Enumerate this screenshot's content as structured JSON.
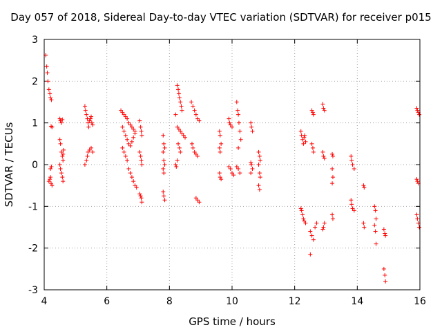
{
  "chart_data": {
    "type": "scatter",
    "title": "Day 057 of 2018, Sidereal Day-to-day VTEC variation (SDTVAR) for receiver p015",
    "xlabel": "GPS time / hours",
    "ylabel": "SDTVAR / TECUs",
    "xlim": [
      4,
      16
    ],
    "ylim": [
      -3,
      3
    ],
    "xticks": [
      4,
      6,
      8,
      10,
      12,
      14,
      16
    ],
    "xtick_labels": [
      "4",
      "6",
      "8",
      "10",
      "12",
      "14",
      "16"
    ],
    "yticks": [
      3,
      2,
      1,
      0,
      -1,
      -2,
      -3
    ],
    "ytick_labels": [
      "3",
      "2",
      "1",
      "0",
      "-1",
      "-2",
      "-3"
    ],
    "grid": true,
    "marker": "+",
    "color": "#ff0000",
    "series": [
      {
        "name": "SDTVAR",
        "points": [
          [
            4.05,
            2.62
          ],
          [
            4.08,
            2.35
          ],
          [
            4.1,
            2.2
          ],
          [
            4.12,
            2.0
          ],
          [
            4.15,
            1.8
          ],
          [
            4.18,
            1.7
          ],
          [
            4.2,
            1.6
          ],
          [
            4.23,
            1.55
          ],
          [
            4.25,
            0.9
          ],
          [
            4.22,
            0.92
          ],
          [
            4.15,
            -0.4
          ],
          [
            4.18,
            -0.35
          ],
          [
            4.2,
            -0.3
          ],
          [
            4.22,
            -0.45
          ],
          [
            4.25,
            -0.5
          ],
          [
            4.2,
            -0.1
          ],
          [
            4.23,
            -0.05
          ],
          [
            4.5,
            1.1
          ],
          [
            4.52,
            1.05
          ],
          [
            4.55,
            1.0
          ],
          [
            4.58,
            1.08
          ],
          [
            4.5,
            0.6
          ],
          [
            4.52,
            0.5
          ],
          [
            4.55,
            0.3
          ],
          [
            4.58,
            0.2
          ],
          [
            4.6,
            0.1
          ],
          [
            4.5,
            0.0
          ],
          [
            4.52,
            -0.1
          ],
          [
            4.55,
            -0.2
          ],
          [
            4.58,
            -0.3
          ],
          [
            4.6,
            -0.4
          ],
          [
            4.62,
            0.35
          ],
          [
            4.6,
            0.25
          ],
          [
            5.3,
            1.4
          ],
          [
            5.32,
            1.3
          ],
          [
            5.35,
            1.2
          ],
          [
            5.38,
            1.1
          ],
          [
            5.4,
            1.0
          ],
          [
            5.42,
            0.9
          ],
          [
            5.45,
            1.05
          ],
          [
            5.48,
            1.1
          ],
          [
            5.5,
            1.15
          ],
          [
            5.52,
            1.0
          ],
          [
            5.55,
            0.95
          ],
          [
            5.35,
            0.1
          ],
          [
            5.38,
            0.2
          ],
          [
            5.4,
            0.3
          ],
          [
            5.45,
            0.35
          ],
          [
            5.5,
            0.4
          ],
          [
            5.55,
            0.3
          ],
          [
            5.3,
            0.0
          ],
          [
            6.45,
            1.3
          ],
          [
            6.5,
            1.25
          ],
          [
            6.55,
            1.2
          ],
          [
            6.6,
            1.15
          ],
          [
            6.65,
            1.1
          ],
          [
            6.7,
            1.0
          ],
          [
            6.75,
            0.95
          ],
          [
            6.8,
            0.9
          ],
          [
            6.85,
            0.85
          ],
          [
            6.9,
            0.8
          ],
          [
            6.5,
            0.9
          ],
          [
            6.55,
            0.8
          ],
          [
            6.6,
            0.7
          ],
          [
            6.65,
            0.6
          ],
          [
            6.7,
            0.5
          ],
          [
            6.75,
            0.45
          ],
          [
            6.8,
            0.55
          ],
          [
            6.85,
            0.65
          ],
          [
            6.9,
            0.75
          ],
          [
            6.5,
            0.4
          ],
          [
            6.55,
            0.3
          ],
          [
            6.6,
            0.2
          ],
          [
            6.65,
            0.1
          ],
          [
            6.7,
            -0.1
          ],
          [
            6.75,
            -0.2
          ],
          [
            6.8,
            -0.3
          ],
          [
            6.85,
            -0.4
          ],
          [
            6.9,
            -0.5
          ],
          [
            6.95,
            -0.55
          ],
          [
            7.05,
            1.05
          ],
          [
            7.08,
            0.9
          ],
          [
            7.1,
            0.8
          ],
          [
            7.12,
            0.7
          ],
          [
            7.05,
            0.3
          ],
          [
            7.08,
            0.2
          ],
          [
            7.1,
            0.1
          ],
          [
            7.12,
            0.0
          ],
          [
            7.05,
            -0.7
          ],
          [
            7.08,
            -0.75
          ],
          [
            7.1,
            -0.8
          ],
          [
            7.12,
            -0.9
          ],
          [
            7.8,
            0.7
          ],
          [
            7.82,
            0.5
          ],
          [
            7.85,
            0.4
          ],
          [
            7.8,
            0.3
          ],
          [
            7.82,
            0.1
          ],
          [
            7.85,
            0.0
          ],
          [
            7.8,
            -0.1
          ],
          [
            7.82,
            -0.2
          ],
          [
            7.8,
            -0.65
          ],
          [
            7.82,
            -0.75
          ],
          [
            7.85,
            -0.85
          ],
          [
            8.2,
            1.2
          ],
          [
            8.25,
            1.9
          ],
          [
            8.28,
            1.8
          ],
          [
            8.3,
            1.7
          ],
          [
            8.32,
            1.6
          ],
          [
            8.35,
            1.5
          ],
          [
            8.38,
            1.4
          ],
          [
            8.4,
            1.3
          ],
          [
            8.25,
            0.9
          ],
          [
            8.3,
            0.85
          ],
          [
            8.35,
            0.8
          ],
          [
            8.4,
            0.75
          ],
          [
            8.45,
            0.7
          ],
          [
            8.5,
            0.65
          ],
          [
            8.28,
            0.5
          ],
          [
            8.32,
            0.4
          ],
          [
            8.35,
            0.3
          ],
          [
            8.25,
            0.1
          ],
          [
            8.2,
            0.0
          ],
          [
            8.22,
            -0.05
          ],
          [
            8.7,
            1.5
          ],
          [
            8.75,
            1.4
          ],
          [
            8.8,
            1.3
          ],
          [
            8.85,
            1.2
          ],
          [
            8.9,
            1.1
          ],
          [
            8.95,
            1.05
          ],
          [
            8.72,
            0.5
          ],
          [
            8.75,
            0.4
          ],
          [
            8.8,
            0.3
          ],
          [
            8.85,
            0.25
          ],
          [
            8.9,
            0.2
          ],
          [
            8.85,
            -0.8
          ],
          [
            8.9,
            -0.85
          ],
          [
            8.95,
            -0.9
          ],
          [
            9.6,
            0.8
          ],
          [
            9.62,
            0.7
          ],
          [
            9.65,
            0.5
          ],
          [
            9.6,
            0.4
          ],
          [
            9.62,
            0.3
          ],
          [
            9.6,
            -0.2
          ],
          [
            9.62,
            -0.3
          ],
          [
            9.65,
            -0.35
          ],
          [
            9.9,
            1.1
          ],
          [
            9.92,
            1.0
          ],
          [
            9.95,
            0.95
          ],
          [
            10.0,
            0.9
          ],
          [
            9.9,
            -0.05
          ],
          [
            9.95,
            -0.1
          ],
          [
            10.0,
            -0.2
          ],
          [
            10.05,
            -0.25
          ],
          [
            10.15,
            1.5
          ],
          [
            10.18,
            1.3
          ],
          [
            10.2,
            1.2
          ],
          [
            10.22,
            1.0
          ],
          [
            10.25,
            0.8
          ],
          [
            10.28,
            0.6
          ],
          [
            10.2,
            0.4
          ],
          [
            10.15,
            -0.05
          ],
          [
            10.2,
            -0.1
          ],
          [
            10.25,
            -0.2
          ],
          [
            10.6,
            1.0
          ],
          [
            10.62,
            0.9
          ],
          [
            10.65,
            0.8
          ],
          [
            10.6,
            0.05
          ],
          [
            10.62,
            0.0
          ],
          [
            10.65,
            -0.1
          ],
          [
            10.6,
            -0.2
          ],
          [
            10.85,
            0.3
          ],
          [
            10.88,
            0.2
          ],
          [
            10.9,
            0.1
          ],
          [
            10.85,
            0.0
          ],
          [
            10.88,
            -0.2
          ],
          [
            10.9,
            -0.3
          ],
          [
            10.85,
            -0.5
          ],
          [
            10.88,
            -0.6
          ],
          [
            12.2,
            0.8
          ],
          [
            12.22,
            0.7
          ],
          [
            12.25,
            0.6
          ],
          [
            12.28,
            0.5
          ],
          [
            12.3,
            0.65
          ],
          [
            12.32,
            0.7
          ],
          [
            12.35,
            0.55
          ],
          [
            12.2,
            -1.05
          ],
          [
            12.22,
            -1.1
          ],
          [
            12.25,
            -1.2
          ],
          [
            12.28,
            -1.3
          ],
          [
            12.3,
            -1.35
          ],
          [
            12.35,
            -1.4
          ],
          [
            12.55,
            1.3
          ],
          [
            12.58,
            1.25
          ],
          [
            12.6,
            1.2
          ],
          [
            12.55,
            0.5
          ],
          [
            12.58,
            0.4
          ],
          [
            12.6,
            0.3
          ],
          [
            12.5,
            -1.6
          ],
          [
            12.55,
            -1.7
          ],
          [
            12.6,
            -1.8
          ],
          [
            12.65,
            -1.5
          ],
          [
            12.7,
            -1.4
          ],
          [
            12.5,
            -2.15
          ],
          [
            12.9,
            1.45
          ],
          [
            12.92,
            1.35
          ],
          [
            12.95,
            1.3
          ],
          [
            12.9,
            0.3
          ],
          [
            12.92,
            0.2
          ],
          [
            12.95,
            0.15
          ],
          [
            12.9,
            -1.55
          ],
          [
            12.92,
            -1.5
          ],
          [
            12.95,
            -1.4
          ],
          [
            13.2,
            0.25
          ],
          [
            13.22,
            0.2
          ],
          [
            13.2,
            -0.1
          ],
          [
            13.22,
            -0.3
          ],
          [
            13.2,
            -0.45
          ],
          [
            13.2,
            -1.2
          ],
          [
            13.22,
            -1.3
          ],
          [
            13.8,
            0.2
          ],
          [
            13.82,
            0.1
          ],
          [
            13.85,
            0.0
          ],
          [
            13.9,
            -0.1
          ],
          [
            13.8,
            -0.85
          ],
          [
            13.82,
            -0.95
          ],
          [
            13.85,
            -1.05
          ],
          [
            13.9,
            -1.1
          ],
          [
            14.2,
            -0.5
          ],
          [
            14.22,
            -0.55
          ],
          [
            14.2,
            -1.4
          ],
          [
            14.22,
            -1.5
          ],
          [
            14.55,
            -1.0
          ],
          [
            14.58,
            -1.1
          ],
          [
            14.6,
            -1.3
          ],
          [
            14.55,
            -1.45
          ],
          [
            14.58,
            -1.6
          ],
          [
            14.6,
            -1.9
          ],
          [
            14.85,
            -1.55
          ],
          [
            14.88,
            -1.65
          ],
          [
            14.9,
            -1.7
          ],
          [
            14.85,
            -2.5
          ],
          [
            14.88,
            -2.65
          ],
          [
            14.9,
            -2.8
          ],
          [
            15.9,
            1.35
          ],
          [
            15.92,
            1.3
          ],
          [
            15.95,
            1.25
          ],
          [
            15.98,
            1.2
          ],
          [
            15.9,
            -0.35
          ],
          [
            15.92,
            -0.4
          ],
          [
            15.95,
            -0.45
          ],
          [
            15.9,
            -1.2
          ],
          [
            15.92,
            -1.3
          ],
          [
            15.95,
            -1.4
          ],
          [
            15.98,
            -1.5
          ]
        ]
      }
    ]
  }
}
